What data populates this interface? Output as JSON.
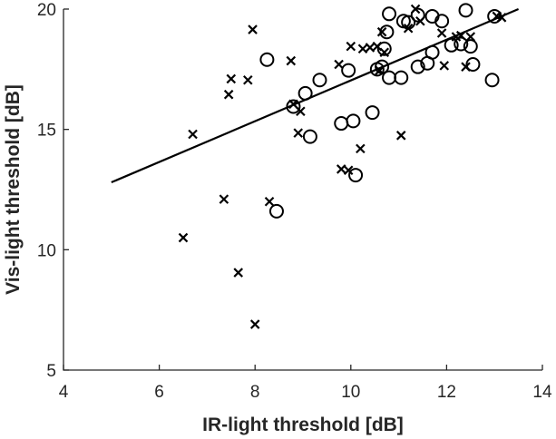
{
  "chart_data": {
    "type": "scatter",
    "xlabel": "IR-light threshold [dB]",
    "ylabel": "Vis-light threshold [dB]",
    "xlim": [
      4,
      14
    ],
    "ylim": [
      5,
      20
    ],
    "xticks": [
      "4",
      "6",
      "8",
      "10",
      "12",
      "14"
    ],
    "yticks": [
      "5",
      "10",
      "15",
      "20"
    ],
    "grid": false,
    "series": [
      {
        "marker": "x",
        "points": [
          [
            6.5,
            10.5
          ],
          [
            6.7,
            14.8
          ],
          [
            7.35,
            12.1
          ],
          [
            7.45,
            16.45
          ],
          [
            7.5,
            17.1
          ],
          [
            7.65,
            9.05
          ],
          [
            7.85,
            17.05
          ],
          [
            7.95,
            19.15
          ],
          [
            8.0,
            6.9
          ],
          [
            8.3,
            12.0
          ],
          [
            8.75,
            17.85
          ],
          [
            8.8,
            16.05
          ],
          [
            8.9,
            14.85
          ],
          [
            8.95,
            15.75
          ],
          [
            9.75,
            17.7
          ],
          [
            9.8,
            13.35
          ],
          [
            9.95,
            13.3
          ],
          [
            10.0,
            18.45
          ],
          [
            10.2,
            14.2
          ],
          [
            10.25,
            18.35
          ],
          [
            10.4,
            18.4
          ],
          [
            10.55,
            18.45
          ],
          [
            10.6,
            17.45
          ],
          [
            10.65,
            19.05
          ],
          [
            10.7,
            18.2
          ],
          [
            11.05,
            14.75
          ],
          [
            11.2,
            19.2
          ],
          [
            11.35,
            20.0
          ],
          [
            11.45,
            19.5
          ],
          [
            11.9,
            19.0
          ],
          [
            11.95,
            17.65
          ],
          [
            12.2,
            18.85
          ],
          [
            12.3,
            18.9
          ],
          [
            12.4,
            17.6
          ],
          [
            12.5,
            18.85
          ],
          [
            13.05,
            19.7
          ],
          [
            13.15,
            19.65
          ]
        ]
      },
      {
        "marker": "o",
        "points": [
          [
            8.25,
            17.9
          ],
          [
            8.45,
            11.6
          ],
          [
            8.8,
            15.95
          ],
          [
            9.05,
            16.5
          ],
          [
            9.15,
            14.7
          ],
          [
            9.35,
            17.05
          ],
          [
            9.8,
            15.25
          ],
          [
            9.95,
            17.45
          ],
          [
            10.05,
            15.35
          ],
          [
            10.1,
            13.1
          ],
          [
            10.45,
            15.7
          ],
          [
            10.55,
            17.5
          ],
          [
            10.65,
            17.6
          ],
          [
            10.7,
            18.35
          ],
          [
            10.75,
            19.05
          ],
          [
            10.8,
            17.15
          ],
          [
            10.8,
            19.8
          ],
          [
            11.05,
            17.15
          ],
          [
            11.1,
            19.5
          ],
          [
            11.2,
            19.45
          ],
          [
            11.4,
            17.6
          ],
          [
            11.4,
            19.75
          ],
          [
            11.6,
            17.75
          ],
          [
            11.7,
            18.2
          ],
          [
            11.7,
            19.7
          ],
          [
            11.9,
            19.5
          ],
          [
            12.1,
            18.5
          ],
          [
            12.3,
            18.55
          ],
          [
            12.4,
            19.95
          ],
          [
            12.5,
            18.45
          ],
          [
            12.55,
            17.7
          ],
          [
            12.95,
            17.05
          ],
          [
            13.0,
            19.7
          ]
        ]
      }
    ],
    "fit_line": {
      "x": [
        5,
        13.5
      ],
      "y": [
        12.8,
        20.0
      ]
    }
  }
}
